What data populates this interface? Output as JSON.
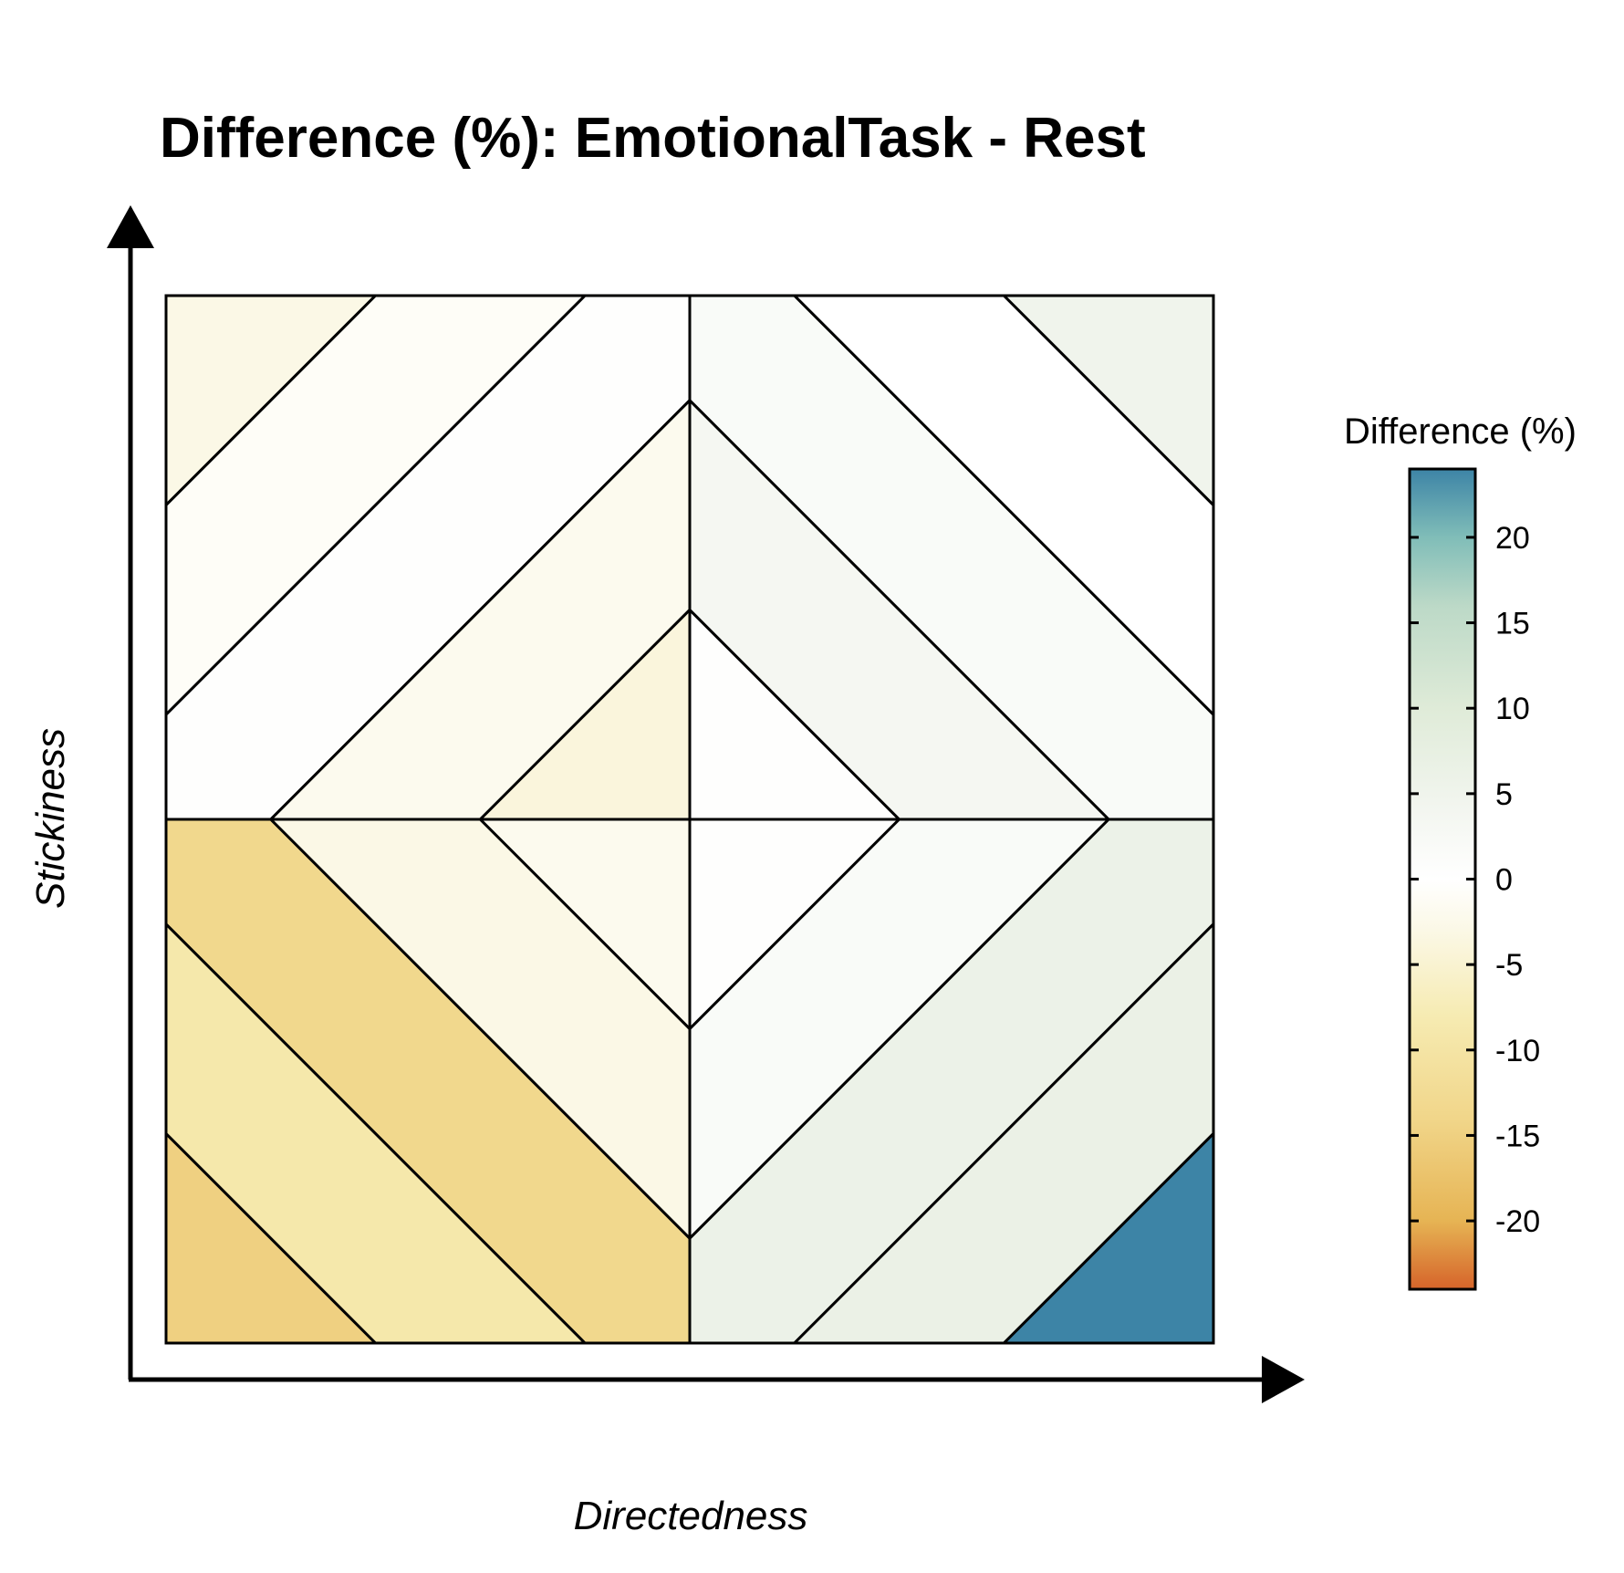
{
  "chart_data": {
    "type": "heatmap",
    "title": "Difference (%): EmotionalTask - Rest",
    "xlabel": "Directedness",
    "ylabel": "Stickiness",
    "grid": false,
    "quadrants": [
      {
        "name": "top-left",
        "diagonal": "anti",
        "bands": [
          {
            "band": 1,
            "value": -3.0
          },
          {
            "band": 2,
            "value": -1.0
          },
          {
            "band": 3,
            "value": 0.5
          },
          {
            "band": 4,
            "value": -2.0
          },
          {
            "band": 5,
            "value": -4.0
          }
        ]
      },
      {
        "name": "top-right",
        "diagonal": "main",
        "bands": [
          {
            "band": 1,
            "value": 0.5
          },
          {
            "band": 2,
            "value": 3.5
          },
          {
            "band": 3,
            "value": 2.0
          },
          {
            "band": 4,
            "value": 0.0
          },
          {
            "band": 5,
            "value": 5.0
          }
        ]
      },
      {
        "name": "bottom-left",
        "diagonal": "main",
        "bands": [
          {
            "band": 1,
            "value": -15.0
          },
          {
            "band": 2,
            "value": -9.0
          },
          {
            "band": 3,
            "value": -13.5
          },
          {
            "band": 4,
            "value": -3.0
          },
          {
            "band": 5,
            "value": -2.0
          }
        ]
      },
      {
        "name": "bottom-right",
        "diagonal": "anti",
        "bands": [
          {
            "band": 1,
            "value": 0.5
          },
          {
            "band": 2,
            "value": 2.0
          },
          {
            "band": 3,
            "value": 6.0
          },
          {
            "band": 4,
            "value": 6.5
          },
          {
            "band": 5,
            "value": 24.0
          }
        ]
      }
    ],
    "legend": {
      "title": "Difference (%)",
      "placement": "right",
      "range": [
        -24,
        24
      ],
      "ticks": [
        20,
        15,
        10,
        5,
        0,
        -5,
        -10,
        -15,
        -20
      ],
      "tick_labels": [
        "20",
        "15",
        "10",
        "5",
        "0",
        "-5",
        "-10",
        "-15",
        "-20"
      ],
      "color_stops": [
        {
          "value": -24,
          "color": "#d6642a"
        },
        {
          "value": -20,
          "color": "#e6b454"
        },
        {
          "value": -14,
          "color": "#f1d68a"
        },
        {
          "value": -8,
          "color": "#f6ebb2"
        },
        {
          "value": -3,
          "color": "#fbf8e6"
        },
        {
          "value": 0,
          "color": "#ffffff"
        },
        {
          "value": 4,
          "color": "#f3f6f0"
        },
        {
          "value": 10,
          "color": "#dfebd8"
        },
        {
          "value": 16,
          "color": "#bcd9c7"
        },
        {
          "value": 20,
          "color": "#80bdb8"
        },
        {
          "value": 24,
          "color": "#3d84a6"
        }
      ]
    }
  }
}
